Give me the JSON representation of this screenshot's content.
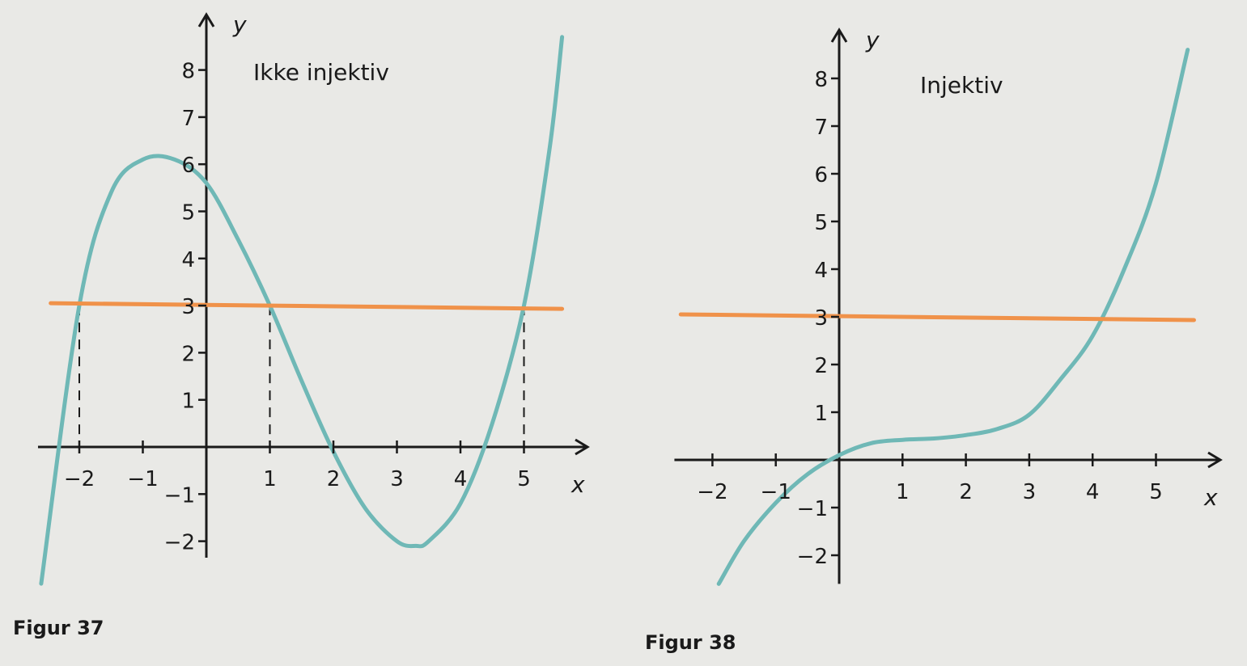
{
  "colors": {
    "curve": "#6fb8b6",
    "line": "#f0924a",
    "axis": "#1a1a1a",
    "background": "#e9e9e6"
  },
  "chart_data": [
    {
      "type": "line",
      "caption": "Figur 37",
      "annotation": "Ikke injektiv",
      "xlabel": "x",
      "ylabel": "y",
      "xlim": [
        -2.65,
        5.7
      ],
      "ylim": [
        -2.35,
        8.2
      ],
      "x_ticks": [
        -2,
        -1,
        1,
        2,
        3,
        4,
        5
      ],
      "x_tick_labels": [
        "−2",
        "−1",
        "1",
        "2",
        "3",
        "4",
        "5"
      ],
      "y_ticks": [
        -2,
        -1,
        1,
        2,
        3,
        4,
        5,
        6,
        7,
        8
      ],
      "y_tick_labels": [
        "−2",
        "−1",
        "1",
        "2",
        "3",
        "4",
        "5",
        "6",
        "7",
        "8"
      ],
      "grid": false,
      "series": [
        {
          "role": "curve",
          "x": [
            -2.6,
            -2.0,
            -1.5,
            -1.0,
            -0.5,
            0.0,
            0.5,
            1.0,
            1.5,
            2.0,
            2.5,
            3.0,
            3.3,
            3.5,
            4.0,
            4.5,
            5.0,
            5.4,
            5.6
          ],
          "y": [
            -2.9,
            3.0,
            5.4,
            6.1,
            6.1,
            5.6,
            4.4,
            3.0,
            1.4,
            -0.1,
            -1.3,
            -2.0,
            -2.1,
            -2.0,
            -1.2,
            0.5,
            3.0,
            6.3,
            8.7
          ]
        },
        {
          "role": "horizontal-line",
          "x": [
            -2.45,
            5.6
          ],
          "y": [
            3.0,
            3.0
          ]
        }
      ],
      "dashed_guides_x": [
        -2,
        1,
        5
      ]
    },
    {
      "type": "line",
      "caption": "Figur 38",
      "annotation": "Injektiv",
      "xlabel": "x",
      "ylabel": "y",
      "xlim": [
        -2.6,
        5.8
      ],
      "ylim": [
        -2.6,
        9.0
      ],
      "x_ticks": [
        -2,
        -1,
        1,
        2,
        3,
        4,
        5
      ],
      "x_tick_labels": [
        "−2",
        "−1",
        "1",
        "2",
        "3",
        "4",
        "5"
      ],
      "y_ticks": [
        -2,
        -1,
        1,
        2,
        3,
        4,
        5,
        6,
        7,
        8
      ],
      "y_tick_labels": [
        "−2",
        "−1",
        "1",
        "2",
        "3",
        "4",
        "5",
        "6",
        "7",
        "8"
      ],
      "grid": false,
      "series": [
        {
          "role": "curve",
          "x": [
            -1.9,
            -1.5,
            -1.0,
            -0.5,
            0.0,
            0.5,
            1.0,
            1.5,
            2.0,
            2.5,
            3.0,
            3.5,
            4.0,
            4.5,
            5.0,
            5.5
          ],
          "y": [
            -2.6,
            -1.7,
            -0.9,
            -0.3,
            0.1,
            0.35,
            0.42,
            0.45,
            0.52,
            0.65,
            0.95,
            1.7,
            2.6,
            4.0,
            5.8,
            8.6
          ]
        },
        {
          "role": "horizontal-line",
          "x": [
            -2.5,
            5.6
          ],
          "y": [
            3.0,
            3.0
          ]
        }
      ]
    }
  ]
}
